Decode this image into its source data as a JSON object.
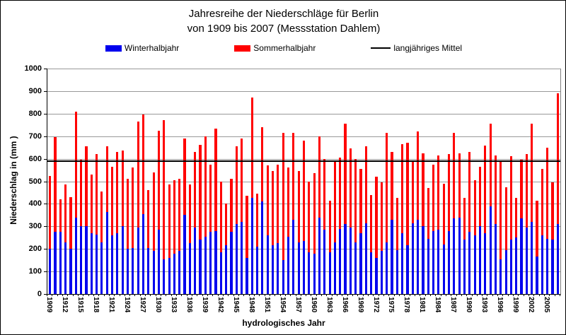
{
  "title": "Jahresreihe der Niederschläge für Berlin",
  "subtitle": "von 1909 bis 2007 (Messstation Dahlem)",
  "colors": {
    "winter": "#0000ee",
    "summer": "#ff0000",
    "mean_line": "#000000",
    "gridline": "#999999",
    "axis": "#000000",
    "background": "#ffffff"
  },
  "chart_data": {
    "type": "bar",
    "stacked": true,
    "title": "Jahresreihe der Niederschläge für Berlin",
    "subtitle": "von 1909 bis 2007 (Messstation Dahlem)",
    "xlabel": "hydrologisches Jahr",
    "ylabel": "Niederschlag in (mm )",
    "ylim": [
      0,
      1000
    ],
    "ytick_step": 100,
    "xtick_label_every": 3,
    "grid": true,
    "legend_position": "top",
    "reference_line": {
      "label": "langjähriges Mittel",
      "value": 589
    },
    "categories": [
      1909,
      1910,
      1911,
      1912,
      1913,
      1914,
      1915,
      1916,
      1917,
      1918,
      1919,
      1920,
      1921,
      1922,
      1923,
      1924,
      1925,
      1926,
      1927,
      1928,
      1929,
      1930,
      1931,
      1932,
      1933,
      1934,
      1935,
      1936,
      1937,
      1938,
      1939,
      1940,
      1941,
      1942,
      1943,
      1944,
      1945,
      1946,
      1947,
      1948,
      1949,
      1950,
      1951,
      1952,
      1953,
      1954,
      1955,
      1956,
      1957,
      1958,
      1959,
      1960,
      1961,
      1962,
      1963,
      1964,
      1965,
      1966,
      1967,
      1968,
      1969,
      1970,
      1971,
      1972,
      1973,
      1974,
      1975,
      1976,
      1977,
      1978,
      1979,
      1980,
      1981,
      1982,
      1983,
      1984,
      1985,
      1986,
      1987,
      1988,
      1989,
      1990,
      1991,
      1992,
      1993,
      1994,
      1995,
      1996,
      1997,
      1998,
      1999,
      2000,
      2001,
      2002,
      2003,
      2004,
      2005,
      2006,
      2007
    ],
    "series": [
      {
        "name": "Winterhalbjahr",
        "color": "#0000ee",
        "values": [
          200,
          275,
          275,
          230,
          200,
          340,
          300,
          300,
          270,
          265,
          230,
          365,
          260,
          270,
          300,
          200,
          205,
          295,
          355,
          205,
          190,
          285,
          155,
          160,
          180,
          190,
          350,
          225,
          295,
          240,
          255,
          275,
          280,
          185,
          215,
          275,
          310,
          320,
          160,
          425,
          210,
          410,
          260,
          215,
          225,
          150,
          255,
          330,
          230,
          235,
          185,
          180,
          340,
          285,
          185,
          230,
          290,
          310,
          295,
          230,
          270,
          315,
          185,
          160,
          190,
          230,
          330,
          195,
          270,
          215,
          315,
          330,
          300,
          245,
          280,
          285,
          220,
          280,
          335,
          340,
          240,
          275,
          260,
          300,
          270,
          390,
          310,
          155,
          195,
          240,
          250,
          335,
          295,
          320,
          165,
          260,
          245,
          240,
          310
        ]
      },
      {
        "name": "Sommerhalbjahr",
        "color": "#ff0000",
        "values": [
          325,
          420,
          145,
          255,
          230,
          470,
          295,
          355,
          260,
          355,
          225,
          290,
          305,
          360,
          335,
          310,
          355,
          470,
          440,
          255,
          350,
          440,
          615,
          325,
          325,
          320,
          340,
          260,
          335,
          420,
          445,
          300,
          455,
          315,
          185,
          235,
          345,
          370,
          275,
          445,
          235,
          330,
          310,
          330,
          350,
          565,
          305,
          385,
          315,
          445,
          315,
          355,
          360,
          315,
          230,
          355,
          315,
          445,
          350,
          370,
          285,
          340,
          255,
          360,
          305,
          485,
          300,
          230,
          395,
          455,
          270,
          390,
          325,
          225,
          295,
          330,
          270,
          340,
          380,
          285,
          185,
          355,
          245,
          265,
          390,
          365,
          305,
          430,
          280,
          370,
          175,
          260,
          325,
          435,
          250,
          295,
          405,
          255,
          580
        ]
      }
    ]
  }
}
